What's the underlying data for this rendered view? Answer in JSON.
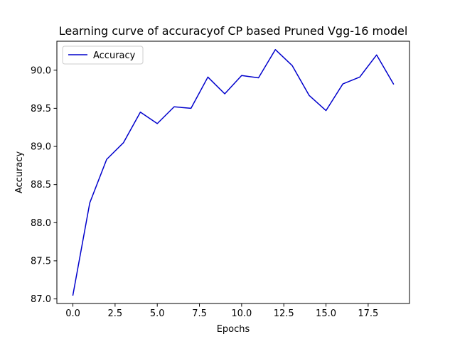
{
  "chart_data": {
    "type": "line",
    "title": "Learning curve of accuracyof CP based Pruned Vgg-16 model",
    "xlabel": "Epochs",
    "ylabel": "Accuracy",
    "xlim": [
      -0.95,
      19.95
    ],
    "ylim": [
      86.94,
      90.38
    ],
    "xticks": [
      0.0,
      2.5,
      5.0,
      7.5,
      10.0,
      12.5,
      15.0,
      17.5
    ],
    "xtick_labels": [
      "0.0",
      "2.5",
      "5.0",
      "7.5",
      "10.0",
      "12.5",
      "15.0",
      "17.5"
    ],
    "yticks": [
      87.0,
      87.5,
      88.0,
      88.5,
      89.0,
      89.5,
      90.0
    ],
    "ytick_labels": [
      "87.0",
      "87.5",
      "88.0",
      "88.5",
      "89.0",
      "89.5",
      "90.0"
    ],
    "grid": false,
    "legend_position": "top-left",
    "x": [
      0,
      1,
      2,
      3,
      4,
      5,
      6,
      7,
      8,
      9,
      10,
      11,
      12,
      13,
      14,
      15,
      16,
      17,
      18,
      19
    ],
    "series": [
      {
        "name": "Accuracy",
        "color": "#0000cc",
        "values": [
          87.05,
          88.26,
          88.83,
          89.05,
          89.45,
          89.3,
          89.52,
          89.5,
          89.91,
          89.69,
          89.93,
          89.9,
          90.27,
          90.06,
          89.67,
          89.47,
          89.82,
          89.91,
          90.2,
          89.82
        ]
      }
    ]
  }
}
